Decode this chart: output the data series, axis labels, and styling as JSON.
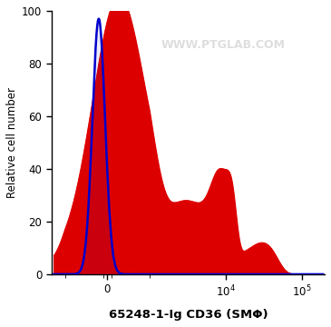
{
  "ylabel": "Relative cell number",
  "xlabel": "65248-1-Ig CD36 (SMΦ)",
  "watermark": "WWW.PTGLAB.COM",
  "ylim": [
    0,
    100
  ],
  "yticks": [
    0,
    20,
    40,
    60,
    80,
    100
  ],
  "blue_color": "#0000cc",
  "red_color": "#dd0000",
  "background_color": "#ffffff",
  "linthresh": 1000,
  "linscale": 0.5,
  "xlim_min": -1500,
  "xlim_max": 200000
}
